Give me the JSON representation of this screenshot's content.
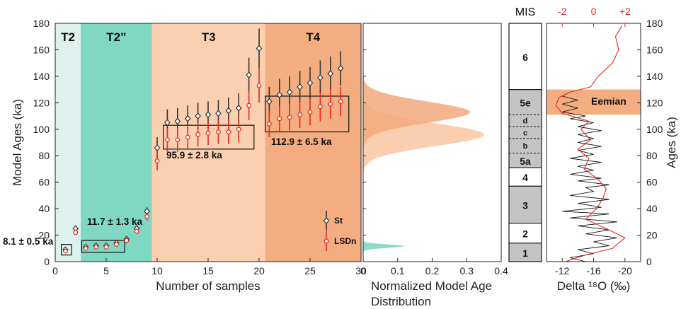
{
  "chart_data": [
    {
      "type": "scatter",
      "xlabel": "Number of samples",
      "ylabel": "Model Ages (ka)",
      "xlim": [
        0,
        30
      ],
      "ylim": [
        0,
        180
      ],
      "x_ticks": [
        "0",
        "5",
        "10",
        "15",
        "20",
        "25",
        "30"
      ],
      "y_ticks": [
        "0",
        "20",
        "40",
        "60",
        "80",
        "100",
        "120",
        "140",
        "160",
        "180"
      ],
      "regions": [
        {
          "label": "T2",
          "x_range": [
            0,
            2.5
          ],
          "color": "#ddf1ed"
        },
        {
          "label": "T2”",
          "x_range": [
            2.5,
            9.5
          ],
          "color": "#7fd8c1"
        },
        {
          "label": "T3",
          "x_range": [
            9.5,
            20.6
          ],
          "color": "#fbd0b1"
        },
        {
          "label": "T4",
          "x_range": [
            20.6,
            30
          ],
          "color": "#f4ad80"
        }
      ],
      "group_boxes": [
        {
          "label": "8.1 ± 0.5 ka",
          "x_range": [
            0.6,
            1.6
          ],
          "y_range": [
            5,
            13
          ]
        },
        {
          "label": "11.7 ± 1.3 ka",
          "x_range": [
            2.6,
            6.8
          ],
          "y_range": [
            7,
            16
          ]
        },
        {
          "label": "95.9 ± 2.8 ka",
          "x_range": [
            10.6,
            19.5
          ],
          "y_range": [
            85,
            103
          ]
        },
        {
          "label": "112.9 ± 6.5 ka",
          "x_range": [
            20.6,
            28.8
          ],
          "y_range": [
            98,
            125
          ]
        }
      ],
      "legend": {
        "position": "bottom-right",
        "entries": [
          "St",
          "LSDn"
        ]
      },
      "series": [
        {
          "name": "St",
          "color": "#333333",
          "marker": "diamond",
          "points": [
            {
              "x": 1,
              "y": 9,
              "err": 1
            },
            {
              "x": 2,
              "y": 25,
              "err": 2
            },
            {
              "x": 3,
              "y": 11,
              "err": 1
            },
            {
              "x": 4,
              "y": 12,
              "err": 1
            },
            {
              "x": 5,
              "y": 12,
              "err": 1
            },
            {
              "x": 6,
              "y": 14,
              "err": 1
            },
            {
              "x": 7,
              "y": 17,
              "err": 2
            },
            {
              "x": 8,
              "y": 25,
              "err": 2
            },
            {
              "x": 9,
              "y": 38,
              "err": 3
            },
            {
              "x": 10,
              "y": 86,
              "err": 8
            },
            {
              "x": 11,
              "y": 105,
              "err": 10
            },
            {
              "x": 12,
              "y": 106,
              "err": 10
            },
            {
              "x": 13,
              "y": 108,
              "err": 10
            },
            {
              "x": 14,
              "y": 110,
              "err": 10
            },
            {
              "x": 15,
              "y": 111,
              "err": 10
            },
            {
              "x": 16,
              "y": 112,
              "err": 10
            },
            {
              "x": 17,
              "y": 114,
              "err": 10
            },
            {
              "x": 18,
              "y": 116,
              "err": 11
            },
            {
              "x": 19,
              "y": 141,
              "err": 13
            },
            {
              "x": 20,
              "y": 161,
              "err": 15
            },
            {
              "x": 21,
              "y": 121,
              "err": 11
            },
            {
              "x": 22,
              "y": 126,
              "err": 12
            },
            {
              "x": 23,
              "y": 128,
              "err": 12
            },
            {
              "x": 24,
              "y": 132,
              "err": 12
            },
            {
              "x": 25,
              "y": 135,
              "err": 12
            },
            {
              "x": 26,
              "y": 139,
              "err": 13
            },
            {
              "x": 27,
              "y": 142,
              "err": 13
            },
            {
              "x": 28,
              "y": 146,
              "err": 13
            }
          ]
        },
        {
          "name": "LSDn",
          "color": "#e8261c",
          "marker": "circle",
          "points": [
            {
              "x": 1,
              "y": 8,
              "err": 1
            },
            {
              "x": 2,
              "y": 22,
              "err": 2
            },
            {
              "x": 3,
              "y": 10,
              "err": 1
            },
            {
              "x": 4,
              "y": 11,
              "err": 1
            },
            {
              "x": 5,
              "y": 11,
              "err": 1
            },
            {
              "x": 6,
              "y": 13,
              "err": 1
            },
            {
              "x": 7,
              "y": 16,
              "err": 2
            },
            {
              "x": 8,
              "y": 23,
              "err": 2
            },
            {
              "x": 9,
              "y": 34,
              "err": 3
            },
            {
              "x": 10,
              "y": 76,
              "err": 7
            },
            {
              "x": 11,
              "y": 92,
              "err": 9
            },
            {
              "x": 12,
              "y": 92,
              "err": 9
            },
            {
              "x": 13,
              "y": 94,
              "err": 9
            },
            {
              "x": 14,
              "y": 96,
              "err": 9
            },
            {
              "x": 15,
              "y": 97,
              "err": 9
            },
            {
              "x": 16,
              "y": 98,
              "err": 9
            },
            {
              "x": 17,
              "y": 98,
              "err": 9
            },
            {
              "x": 18,
              "y": 100,
              "err": 10
            },
            {
              "x": 19,
              "y": 118,
              "err": 11
            },
            {
              "x": 20,
              "y": 133,
              "err": 13
            },
            {
              "x": 21,
              "y": 104,
              "err": 10
            },
            {
              "x": 22,
              "y": 108,
              "err": 10
            },
            {
              "x": 23,
              "y": 109,
              "err": 10
            },
            {
              "x": 24,
              "y": 111,
              "err": 10
            },
            {
              "x": 25,
              "y": 113,
              "err": 10
            },
            {
              "x": 26,
              "y": 117,
              "err": 11
            },
            {
              "x": 27,
              "y": 119,
              "err": 11
            },
            {
              "x": 28,
              "y": 121,
              "err": 11
            }
          ]
        }
      ]
    },
    {
      "type": "area",
      "xlabel": "Normalized Model Age Distribution",
      "xlim": [
        0,
        0.4
      ],
      "ylim": [
        0,
        180
      ],
      "x_ticks": [
        "0",
        "0.1",
        "0.2",
        "0.3",
        "0.4"
      ],
      "series": [
        {
          "color": "#7fd8c1",
          "mean": 11.7,
          "sd": 1.3,
          "peak": 0.12
        },
        {
          "color": "#f9c9a6",
          "mean": 95.9,
          "sd": 8.5,
          "peak": 0.35
        },
        {
          "color": "#f2a97c",
          "mean": 112.9,
          "sd": 8.0,
          "peak": 0.31
        }
      ]
    },
    {
      "type": "table",
      "title": "MIS",
      "ylim": [
        0,
        180
      ],
      "stages": [
        {
          "label": "1",
          "range": [
            0,
            14
          ],
          "fill": "#c4c4c4"
        },
        {
          "label": "2",
          "range": [
            14,
            29
          ],
          "fill": "#ffffff"
        },
        {
          "label": "3",
          "range": [
            29,
            57
          ],
          "fill": "#c4c4c4"
        },
        {
          "label": "4",
          "range": [
            57,
            71
          ],
          "fill": "#ffffff"
        },
        {
          "label": "5a",
          "range": [
            71,
            82
          ],
          "fill": "#c4c4c4"
        },
        {
          "label": "b",
          "range": [
            82,
            93
          ],
          "fill": "#c4c4c4"
        },
        {
          "label": "c",
          "range": [
            93,
            102
          ],
          "fill": "#c4c4c4"
        },
        {
          "label": "d",
          "range": [
            102,
            111
          ],
          "fill": "#c4c4c4"
        },
        {
          "label": "5e",
          "range": [
            111,
            130
          ],
          "fill": "#c4c4c4"
        },
        {
          "label": "6",
          "range": [
            130,
            180
          ],
          "fill": "#ffffff"
        }
      ]
    },
    {
      "type": "line",
      "xlabel": "Delta ¹⁸O (‰)",
      "ylabel": "Ages (ka)",
      "ylim": [
        0,
        180
      ],
      "bottom_axis": {
        "range": [
          -10,
          -22
        ],
        "ticks": [
          "-12",
          "-16",
          "-20"
        ]
      },
      "top_axis": {
        "range": [
          -3,
          3
        ],
        "ticks": [
          "-2",
          "0",
          "+2"
        ],
        "color": "#e8261c"
      },
      "y_ticks": [
        "0",
        "20",
        "40",
        "60",
        "80",
        "100",
        "120",
        "140",
        "160",
        "180"
      ],
      "highlight": {
        "label": "Eemian",
        "y_range": [
          111,
          130
        ],
        "color": "#f4ad80"
      },
      "series": [
        {
          "color": "#111111",
          "axis": "bottom",
          "points": [
            [
              -15,
              0
            ],
            [
              -13,
              3
            ],
            [
              -16,
              6
            ],
            [
              -14,
              9
            ],
            [
              -18,
              12
            ],
            [
              -16,
              15
            ],
            [
              -19,
              18
            ],
            [
              -15,
              21
            ],
            [
              -18,
              24
            ],
            [
              -14,
              27
            ],
            [
              -19,
              30
            ],
            [
              -13,
              33
            ],
            [
              -18,
              36
            ],
            [
              -12,
              38
            ],
            [
              -17,
              41
            ],
            [
              -14,
              44
            ],
            [
              -18,
              47
            ],
            [
              -13,
              50
            ],
            [
              -16,
              53
            ],
            [
              -15,
              56
            ],
            [
              -18,
              58
            ],
            [
              -14,
              61
            ],
            [
              -17,
              63
            ],
            [
              -13,
              66
            ],
            [
              -16,
              69
            ],
            [
              -14,
              72
            ],
            [
              -17,
              75
            ],
            [
              -13,
              78
            ],
            [
              -16,
              81
            ],
            [
              -14,
              84
            ],
            [
              -17,
              87
            ],
            [
              -14,
              90
            ],
            [
              -16,
              93
            ],
            [
              -14,
              96
            ],
            [
              -17,
              99
            ],
            [
              -14,
              102
            ],
            [
              -16,
              105
            ],
            [
              -13,
              108
            ],
            [
              -15,
              110
            ],
            [
              -12,
              113
            ],
            [
              -14,
              116
            ],
            [
              -12,
              119
            ],
            [
              -14,
              122
            ],
            [
              -12,
              125
            ],
            [
              -13,
              128
            ]
          ]
        },
        {
          "color": "#e8261c",
          "axis": "top",
          "points": [
            [
              -1.8,
              0
            ],
            [
              -0.5,
              5
            ],
            [
              1.2,
              10
            ],
            [
              2,
              18
            ],
            [
              0.8,
              25
            ],
            [
              -0.5,
              32
            ],
            [
              0.2,
              40
            ],
            [
              0.6,
              48
            ],
            [
              0.8,
              55
            ],
            [
              0.3,
              62
            ],
            [
              -0.6,
              70
            ],
            [
              -0.3,
              78
            ],
            [
              -1,
              85
            ],
            [
              -0.2,
              92
            ],
            [
              -0.8,
              100
            ],
            [
              -0.3,
              106
            ],
            [
              -2,
              112
            ],
            [
              -2.4,
              118
            ],
            [
              -2.2,
              124
            ],
            [
              -1.5,
              128
            ],
            [
              -0.2,
              132
            ],
            [
              0.3,
              140
            ],
            [
              1.2,
              150
            ],
            [
              1.6,
              160
            ],
            [
              1.4,
              170
            ],
            [
              1.8,
              178
            ]
          ]
        }
      ]
    }
  ]
}
